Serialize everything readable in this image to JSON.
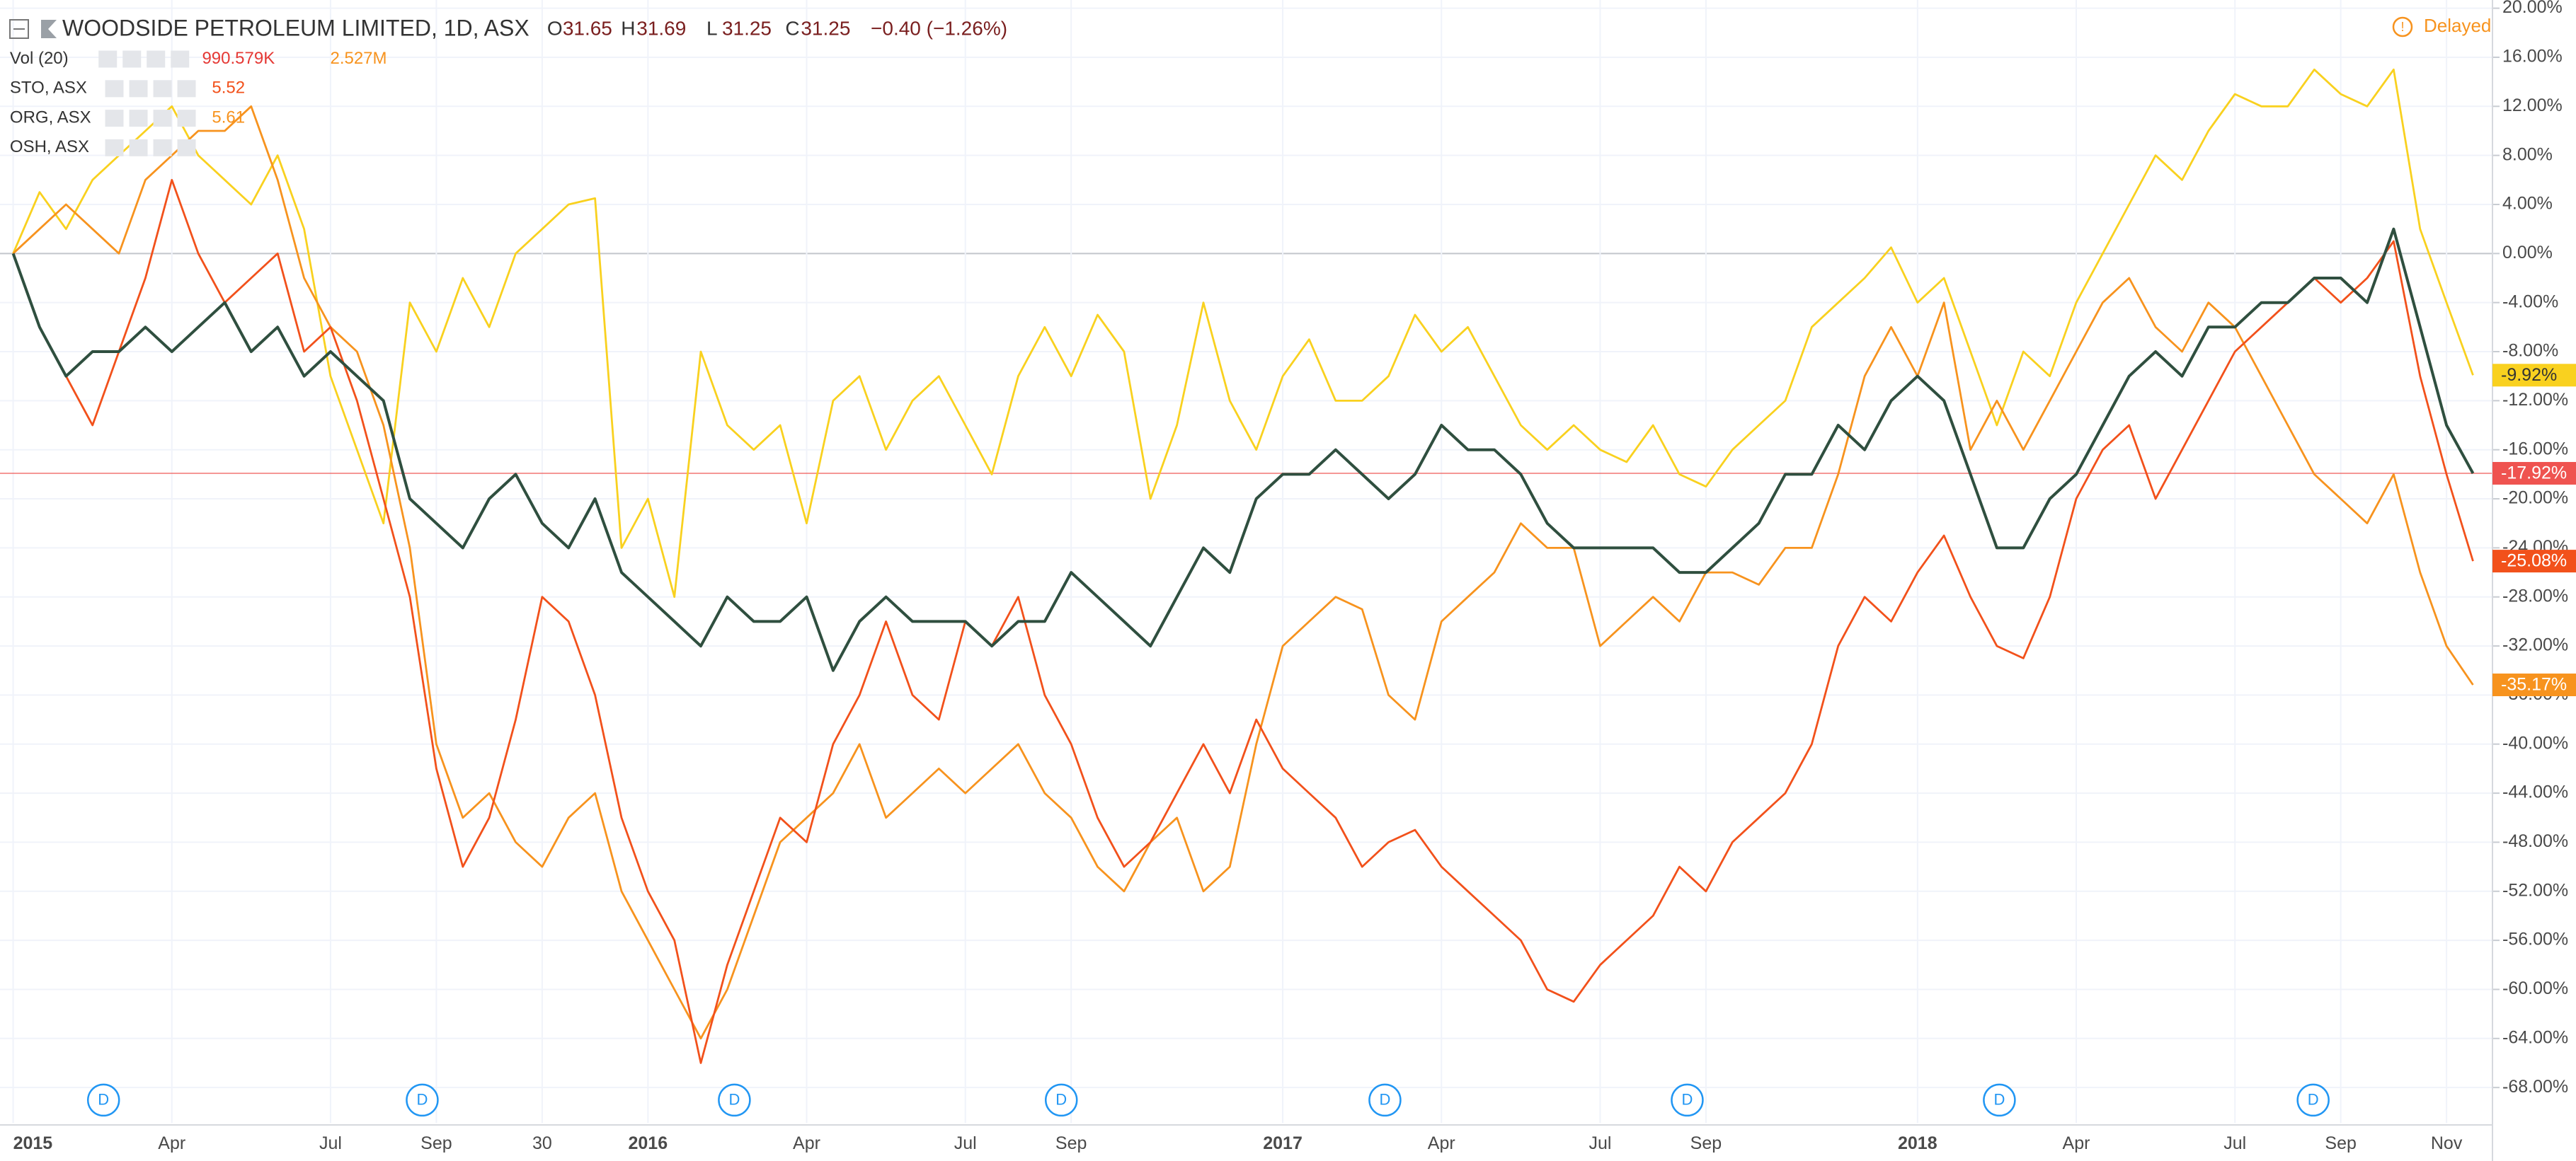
{
  "header": {
    "title": "WOODSIDE PETROLEUM LIMITED, 1D, ASX",
    "ohlc": [
      {
        "label": "O",
        "value": "31.65"
      },
      {
        "label": "H",
        "value": "31.69"
      },
      {
        "label": "L",
        "value": "31.25"
      },
      {
        "label": "C",
        "value": "31.25"
      }
    ],
    "change": "−0.40 (−1.26%)",
    "status": "Delayed"
  },
  "legend": {
    "rows": [
      {
        "name": "Vol (20)",
        "values": [
          "990.579K",
          "2.527M"
        ]
      },
      {
        "name": "STO, ASX",
        "values": [
          "5.52"
        ]
      },
      {
        "name": "ORG, ASX",
        "values": [
          "5.61"
        ]
      },
      {
        "name": "OSH, ASX",
        "values": []
      }
    ]
  },
  "chart_data": {
    "type": "line",
    "grid": true,
    "categories": [
      "2015",
      null,
      null,
      null,
      null,
      null,
      "Apr",
      null,
      null,
      null,
      null,
      null,
      "Jul",
      null,
      null,
      null,
      "Sep",
      null,
      null,
      null,
      "30",
      null,
      null,
      null,
      "2016",
      null,
      null,
      null,
      null,
      null,
      "Apr",
      null,
      null,
      null,
      null,
      null,
      "Jul",
      null,
      null,
      null,
      "Sep",
      null,
      null,
      null,
      null,
      null,
      null,
      null,
      "2017",
      null,
      null,
      null,
      null,
      null,
      "Apr",
      null,
      null,
      null,
      null,
      null,
      "Jul",
      null,
      null,
      null,
      "Sep",
      null,
      null,
      null,
      null,
      null,
      null,
      null,
      "2018",
      null,
      null,
      null,
      null,
      null,
      "Apr",
      null,
      null,
      null,
      null,
      null,
      "Jul",
      null,
      null,
      null,
      "Sep",
      null,
      null,
      null,
      "Nov",
      null
    ],
    "ylim": [
      -70.9,
      20.67
    ],
    "yticks": [
      {
        "value": 20,
        "label": "20.00%"
      },
      {
        "value": 16,
        "label": "16.00%"
      },
      {
        "value": 12,
        "label": "12.00%"
      },
      {
        "value": 8,
        "label": "8.00%"
      },
      {
        "value": 4,
        "label": "4.00%"
      },
      {
        "value": 0,
        "label": "0.00%"
      },
      {
        "value": -4,
        "label": "-4.00%"
      },
      {
        "value": -8,
        "label": "-8.00%"
      },
      {
        "value": -12,
        "label": "-12.00%"
      },
      {
        "value": -16,
        "label": "-16.00%"
      },
      {
        "value": -20,
        "label": "-20.00%"
      },
      {
        "value": -24,
        "label": "-24.00%"
      },
      {
        "value": -28,
        "label": "-28.00%"
      },
      {
        "value": -32,
        "label": "-32.00%"
      },
      {
        "value": -36,
        "label": "-36.00%"
      },
      {
        "value": -40,
        "label": "-40.00%"
      },
      {
        "value": -44,
        "label": "-44.00%"
      },
      {
        "value": -48,
        "label": "-48.00%"
      },
      {
        "value": -52,
        "label": "-52.00%"
      },
      {
        "value": -56,
        "label": "-56.00%"
      },
      {
        "value": -60,
        "label": "-60.00%"
      },
      {
        "value": -64,
        "label": "-64.00%"
      },
      {
        "value": -68,
        "label": "-68.00%"
      }
    ],
    "dividend_markers": [
      "D",
      "D",
      "D",
      "D",
      "D",
      "D",
      "D",
      "D"
    ],
    "series": [
      {
        "name": "OSH, ASX",
        "color": "#f9d11f",
        "label_text": "#333",
        "last_label": "-9.92%",
        "values": [
          0,
          5,
          2,
          6,
          8,
          10,
          12,
          8,
          6,
          4,
          8,
          2,
          -10,
          -16,
          -22,
          -4,
          -8,
          -2,
          -6,
          0,
          2,
          4,
          4.5,
          -24,
          -20,
          -28,
          -8,
          -14,
          -16,
          -14,
          -22,
          -12,
          -10,
          -16,
          -12,
          -10,
          -14,
          -18,
          -10,
          -6,
          -10,
          -5,
          -8,
          -20,
          -14,
          -4,
          -12,
          -16,
          -10,
          -7,
          -12,
          -12,
          -10,
          -5,
          -8,
          -6,
          -10,
          -14,
          -16,
          -14,
          -16,
          -17,
          -14,
          -18,
          -19,
          -16,
          -14,
          -12,
          -6,
          -4,
          -2,
          0.5,
          -4,
          -2,
          -8,
          -14,
          -8,
          -10,
          -4,
          0,
          4,
          8,
          6,
          10,
          13,
          12,
          12,
          15,
          13,
          12,
          15,
          2,
          -4,
          -9.92
        ]
      },
      {
        "name": "ORG, ASX",
        "color": "#f7931e",
        "label_text": "#fff",
        "last_label": "-35.17%",
        "values": [
          0,
          2,
          4,
          2,
          0,
          6,
          8,
          10,
          10,
          12,
          6,
          -2,
          -6,
          -8,
          -14,
          -24,
          -40,
          -46,
          -44,
          -48,
          -50,
          -46,
          -44,
          -52,
          -56,
          -60,
          -64,
          -60,
          -54,
          -48,
          -46,
          -44,
          -40,
          -46,
          -44,
          -42,
          -44,
          -42,
          -40,
          -44,
          -46,
          -50,
          -52,
          -48,
          -46,
          -52,
          -50,
          -40,
          -32,
          -30,
          -28,
          -29,
          -36,
          -38,
          -30,
          -28,
          -26,
          -22,
          -24,
          -24,
          -32,
          -30,
          -28,
          -30,
          -26,
          -26,
          -27,
          -24,
          -24,
          -18,
          -10,
          -6,
          -10,
          -4,
          -16,
          -12,
          -16,
          -12,
          -8,
          -4,
          -2,
          -6,
          -8,
          -4,
          -6,
          -10,
          -14,
          -18,
          -20,
          -22,
          -18,
          -26,
          -32,
          -35.17
        ]
      },
      {
        "name": "STO, ASX",
        "color": "#f2511b",
        "label_text": "#fff",
        "last_label": "-25.08%",
        "values": [
          0,
          -6,
          -10,
          -14,
          -8,
          -2,
          6,
          0,
          -4,
          -2,
          0,
          -8,
          -6,
          -12,
          -20,
          -28,
          -42,
          -50,
          -46,
          -38,
          -28,
          -30,
          -36,
          -46,
          -52,
          -56,
          -66,
          -58,
          -52,
          -46,
          -48,
          -40,
          -36,
          -30,
          -36,
          -38,
          -30,
          -32,
          -28,
          -36,
          -40,
          -46,
          -50,
          -48,
          -44,
          -40,
          -44,
          -38,
          -42,
          -44,
          -46,
          -50,
          -48,
          -47,
          -50,
          -52,
          -54,
          -56,
          -60,
          -61,
          -58,
          -56,
          -54,
          -50,
          -52,
          -48,
          -46,
          -44,
          -40,
          -32,
          -28,
          -30,
          -26,
          -23,
          -28,
          -32,
          -33,
          -28,
          -20,
          -16,
          -14,
          -20,
          -16,
          -12,
          -8,
          -6,
          -4,
          -2,
          -4,
          -2,
          1,
          -10,
          -18,
          -25.08
        ]
      },
      {
        "name": "WOODSIDE PETROLEUM LIMITED",
        "color": "#2f4f3f",
        "label_text": "#fff",
        "label_bg": "#ef5350",
        "last_label": "-17.92%",
        "values": [
          0,
          -6,
          -10,
          -8,
          -8,
          -6,
          -8,
          -6,
          -4,
          -8,
          -6,
          -10,
          -8,
          -10,
          -12,
          -20,
          -22,
          -24,
          -20,
          -18,
          -22,
          -24,
          -20,
          -26,
          -28,
          -30,
          -32,
          -28,
          -30,
          -30,
          -28,
          -34,
          -30,
          -28,
          -30,
          -30,
          -30,
          -32,
          -30,
          -30,
          -26,
          -28,
          -30,
          -32,
          -28,
          -24,
          -26,
          -20,
          -18,
          -18,
          -16,
          -18,
          -20,
          -18,
          -14,
          -16,
          -16,
          -18,
          -22,
          -24,
          -24,
          -24,
          -24,
          -26,
          -26,
          -24,
          -22,
          -18,
          -18,
          -14,
          -16,
          -12,
          -10,
          -12,
          -18,
          -24,
          -24,
          -20,
          -18,
          -14,
          -10,
          -8,
          -10,
          -6,
          -6,
          -4,
          -4,
          -2,
          -2,
          -4,
          2,
          -6,
          -14,
          -17.92
        ]
      }
    ]
  }
}
